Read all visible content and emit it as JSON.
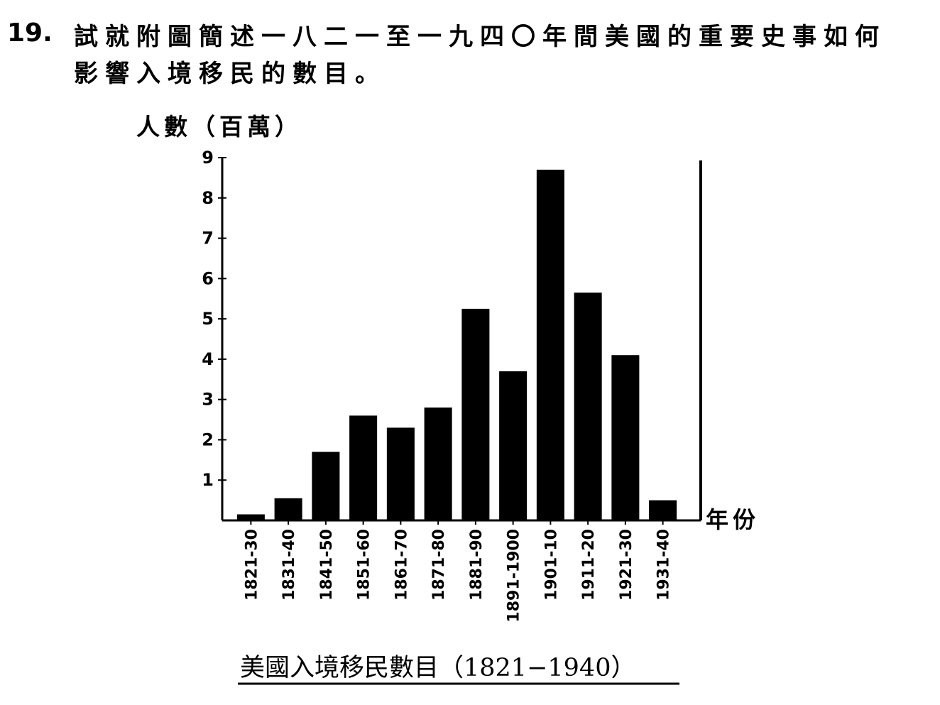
{
  "question": {
    "number": "19.",
    "line1": "試就附圖簡述一八二一至一九四〇年間美國的重要史事如何",
    "line2": "影響入境移民的數目。"
  },
  "chart_data": {
    "type": "bar",
    "ylabel": "人數（百萬）",
    "xlabel": "年份",
    "title": "美國入境移民數目（1821−1940）",
    "ylim": [
      0,
      9
    ],
    "yticks": [
      1,
      2,
      3,
      4,
      5,
      6,
      7,
      8,
      9
    ],
    "categories": [
      "1821-30",
      "1831-40",
      "1841-50",
      "1851-60",
      "1861-70",
      "1871-80",
      "1881-90",
      "1891-1900",
      "1901-10",
      "1911-20",
      "1921-30",
      "1931-40"
    ],
    "values": [
      0.15,
      0.55,
      1.7,
      2.6,
      2.3,
      2.8,
      5.25,
      3.7,
      8.7,
      5.65,
      4.1,
      0.5
    ],
    "bar_color": "#000000",
    "grid": false
  }
}
